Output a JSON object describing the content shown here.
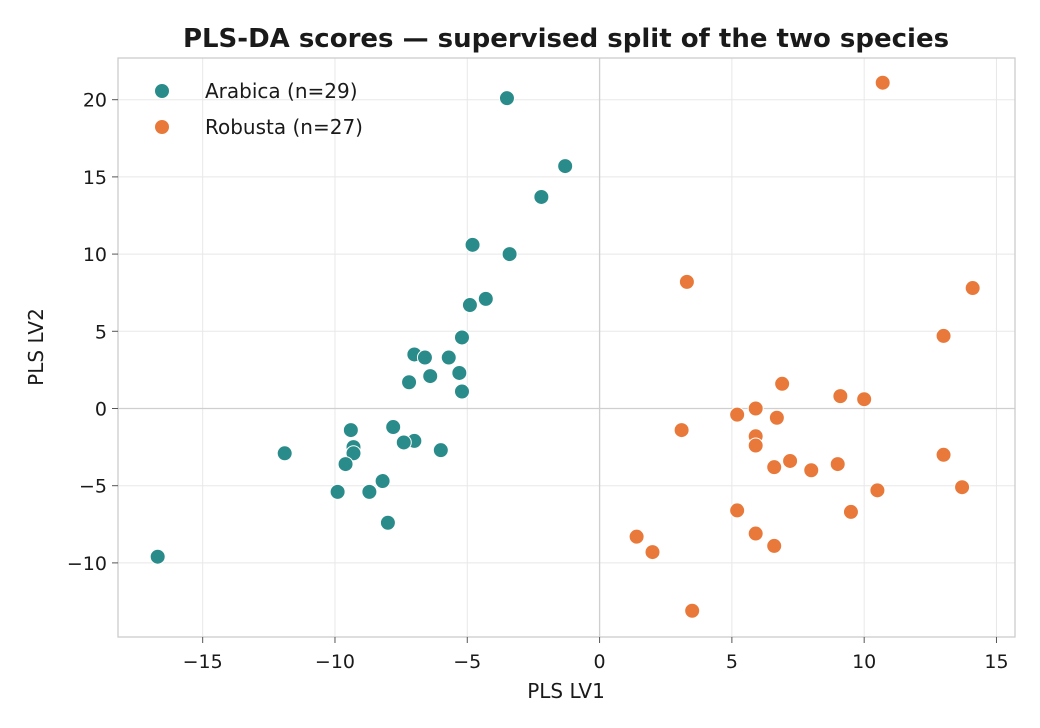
{
  "chart_data": {
    "type": "scatter",
    "title": "PLS-DA scores — supervised split of the two species",
    "xlabel": "PLS LV1",
    "ylabel": "PLS LV2",
    "xlim": [
      -18.2,
      15.7
    ],
    "ylim": [
      -14.8,
      22.7
    ],
    "xticks": [
      -15,
      -10,
      -5,
      0,
      5,
      10,
      15
    ],
    "yticks": [
      -10,
      -5,
      0,
      5,
      10,
      15,
      20
    ],
    "xtick_labels": [
      "−15",
      "−10",
      "−5",
      "0",
      "5",
      "10",
      "15"
    ],
    "ytick_labels": [
      "−10",
      "−5",
      "0",
      "5",
      "10",
      "15",
      "20"
    ],
    "grid": true,
    "zero_lines": true,
    "legend_position": "top-left",
    "series": [
      {
        "name": "Arabica (n=29)",
        "color": "#2a8c8a",
        "points": [
          [
            -3.5,
            20.1
          ],
          [
            -1.3,
            15.7
          ],
          [
            -2.2,
            13.7
          ],
          [
            -4.8,
            10.6
          ],
          [
            -3.4,
            10.0
          ],
          [
            -4.9,
            6.7
          ],
          [
            -4.3,
            7.1
          ],
          [
            -5.2,
            4.6
          ],
          [
            -7.0,
            3.5
          ],
          [
            -6.6,
            3.3
          ],
          [
            -5.7,
            3.3
          ],
          [
            -5.3,
            2.3
          ],
          [
            -6.4,
            2.1
          ],
          [
            -7.2,
            1.7
          ],
          [
            -5.2,
            1.1
          ],
          [
            -7.8,
            -1.2
          ],
          [
            -9.4,
            -1.4
          ],
          [
            -7.0,
            -2.1
          ],
          [
            -7.4,
            -2.2
          ],
          [
            -9.3,
            -2.5
          ],
          [
            -9.3,
            -2.9
          ],
          [
            -6.0,
            -2.7
          ],
          [
            -11.9,
            -2.9
          ],
          [
            -9.6,
            -3.6
          ],
          [
            -8.2,
            -4.7
          ],
          [
            -8.7,
            -5.4
          ],
          [
            -9.9,
            -5.4
          ],
          [
            -8.0,
            -7.4
          ],
          [
            -16.7,
            -9.6
          ]
        ]
      },
      {
        "name": "Robusta (n=27)",
        "color": "#e8793a",
        "points": [
          [
            10.7,
            21.1
          ],
          [
            14.1,
            7.8
          ],
          [
            3.3,
            8.2
          ],
          [
            13.0,
            4.7
          ],
          [
            6.9,
            1.6
          ],
          [
            9.1,
            0.8
          ],
          [
            10.0,
            0.6
          ],
          [
            5.9,
            0.0
          ],
          [
            5.2,
            -0.4
          ],
          [
            6.7,
            -0.6
          ],
          [
            3.1,
            -1.4
          ],
          [
            5.9,
            -1.8
          ],
          [
            5.9,
            -2.4
          ],
          [
            13.0,
            -3.0
          ],
          [
            7.2,
            -3.4
          ],
          [
            6.6,
            -3.8
          ],
          [
            8.0,
            -4.0
          ],
          [
            9.0,
            -3.6
          ],
          [
            13.7,
            -5.1
          ],
          [
            10.5,
            -5.3
          ],
          [
            5.2,
            -6.6
          ],
          [
            9.5,
            -6.7
          ],
          [
            5.9,
            -8.1
          ],
          [
            1.4,
            -8.3
          ],
          [
            6.6,
            -8.9
          ],
          [
            2.0,
            -9.3
          ],
          [
            3.5,
            -13.1
          ]
        ]
      }
    ]
  }
}
